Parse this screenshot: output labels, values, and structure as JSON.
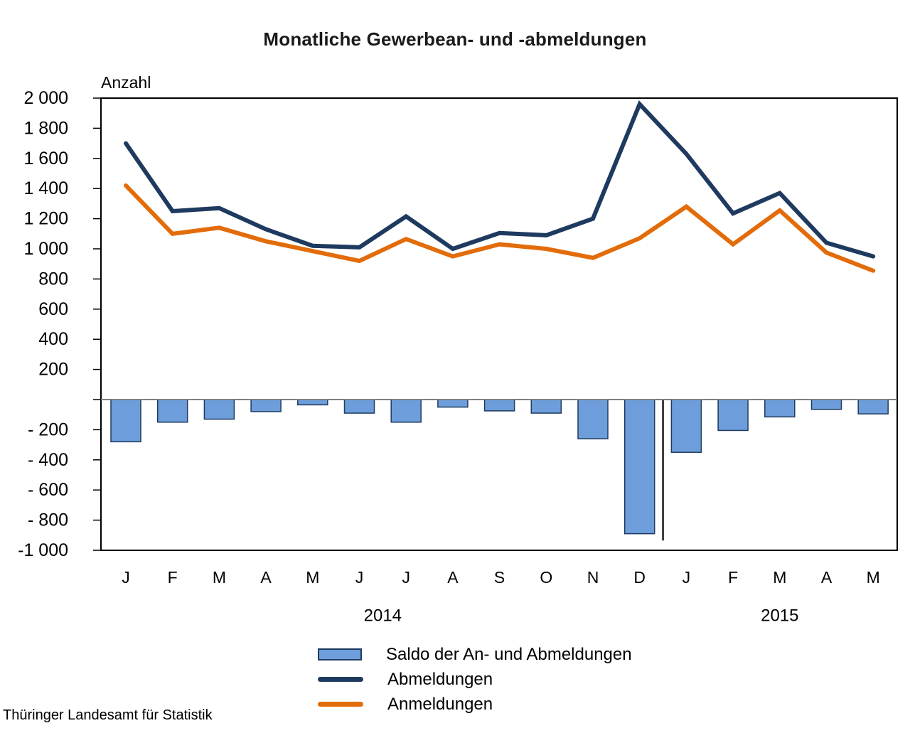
{
  "page": {
    "title": "Monatliche Gewerbean- und -abmeldungen",
    "y_axis_unit_label": "Anzahl",
    "footer_source": "Thüringer Landesamt für Statistik"
  },
  "legend": {
    "items": [
      {
        "type": "bar",
        "label": "Saldo der An- und Abmeldungen",
        "fill": "#6D9EDB",
        "border": "#1F3A5F"
      },
      {
        "type": "line",
        "label": "Abmeldungen",
        "color": "#1F3A5F"
      },
      {
        "type": "line",
        "label": "Anmeldungen",
        "color": "#E36C0A"
      }
    ]
  },
  "chart_data": {
    "type": "combo-bar-line",
    "categories": [
      "J",
      "F",
      "M",
      "A",
      "M",
      "J",
      "J",
      "A",
      "S",
      "O",
      "N",
      "D",
      "J",
      "F",
      "M",
      "A",
      "M"
    ],
    "year_groups": [
      {
        "label": "2014",
        "first_month_index": 0,
        "last_month_index": 11
      },
      {
        "label": "2015",
        "first_month_index": 12,
        "last_month_index": 16
      }
    ],
    "series": [
      {
        "name": "Saldo der An- und Abmeldungen",
        "type": "bar",
        "color": "#6D9EDB",
        "border": "#1F3A5F",
        "values": [
          -280,
          -150,
          -130,
          -80,
          -35,
          -90,
          -150,
          -50,
          -75,
          -90,
          -260,
          -890,
          -350,
          -205,
          -115,
          -65,
          -95
        ]
      },
      {
        "name": "Abmeldungen",
        "type": "line",
        "color": "#1F3A5F",
        "values": [
          1700,
          1250,
          1270,
          1130,
          1020,
          1010,
          1215,
          1000,
          1105,
          1090,
          1200,
          1960,
          1630,
          1235,
          1370,
          1040,
          950
        ]
      },
      {
        "name": "Anmeldungen",
        "type": "line",
        "color": "#E36C0A",
        "values": [
          1420,
          1100,
          1140,
          1050,
          985,
          920,
          1065,
          950,
          1030,
          1000,
          940,
          1070,
          1280,
          1030,
          1255,
          975,
          855
        ]
      }
    ],
    "ylim": [
      -1000,
      2000
    ],
    "ytick_step": 200,
    "ytick_labels_top_to_bottom": [
      "2 000",
      "1 800",
      "1 600",
      "1 400",
      "1 200",
      "1 000",
      "800",
      "600",
      "400",
      "200",
      "",
      "- 200",
      "- 400",
      "- 600",
      "- 800",
      "-1 000"
    ],
    "zero_line_unlabeled": true,
    "separator_line": {
      "position": "between Dez 2014 and Jan 2015",
      "from_value": 0,
      "to_value": -935
    },
    "grid": "off",
    "legend_position": "bottom-center",
    "plot_frame": true
  }
}
